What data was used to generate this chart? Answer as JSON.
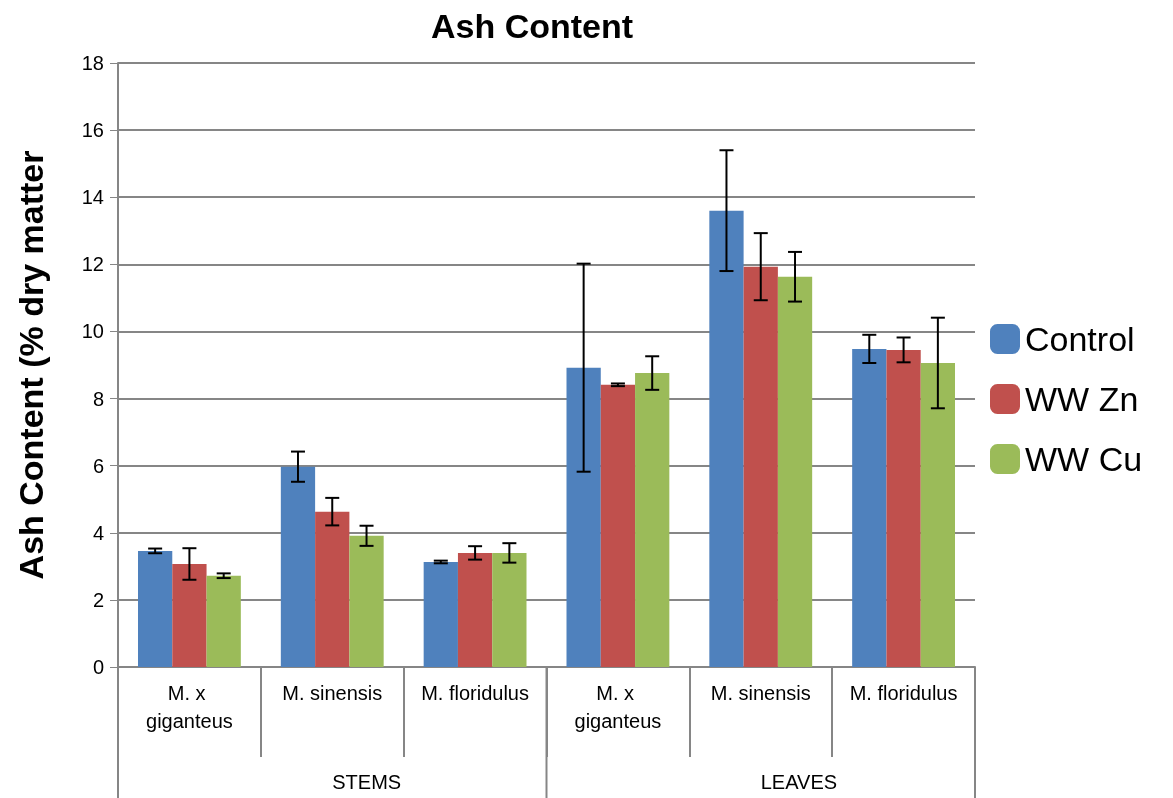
{
  "chart_data": {
    "type": "bar",
    "title": "Ash Content",
    "ylabel": "Ash Content (% dry matter",
    "categories": [
      "M. x giganteus",
      "M. sinensis",
      "M. floridulus",
      "M. x giganteus",
      "M. sinensis",
      "M. floridulus"
    ],
    "series": [
      {
        "name": "Control",
        "color": "#4f81bd",
        "values": [
          3.46,
          5.97,
          3.13,
          8.92,
          13.6,
          9.48
        ],
        "errors": [
          0.07,
          0.45,
          0.04,
          3.1,
          1.8,
          0.42
        ]
      },
      {
        "name": "WW Zn",
        "color": "#c0504d",
        "values": [
          3.07,
          4.63,
          3.4,
          8.41,
          11.93,
          9.45
        ],
        "errors": [
          0.47,
          0.41,
          0.2,
          0.04,
          1.0,
          0.37
        ]
      },
      {
        "name": "WW Cu",
        "color": "#9bbb59",
        "values": [
          2.72,
          3.91,
          3.4,
          8.76,
          11.63,
          9.06
        ],
        "errors": [
          0.07,
          0.3,
          0.29,
          0.5,
          0.74,
          1.35
        ]
      }
    ],
    "annotations": [
      "STEMS",
      "LEAVES"
    ],
    "ylim": [
      0,
      18
    ],
    "yticks": [
      0,
      2,
      4,
      6,
      8,
      10,
      12,
      14,
      16,
      18
    ],
    "grid": "y",
    "legend": "right"
  }
}
